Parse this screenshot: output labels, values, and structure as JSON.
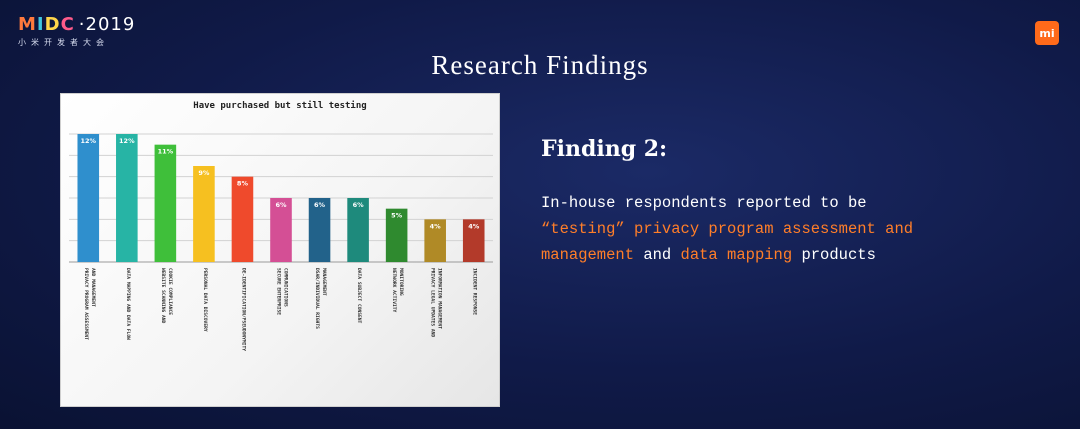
{
  "header": {
    "logo_segments": [
      "M",
      "I",
      "D",
      "C",
      "·2019"
    ],
    "logo_subtitle": "小米开发者大会",
    "brand_badge": "mi",
    "brand_color": "#ff6a1a"
  },
  "page_title": "Research Findings",
  "finding": {
    "title": "Finding 2:",
    "line1": "In-house respondents reported to be",
    "hl1": "“testing” privacy program assessment and",
    "hl2": "management",
    "mid": " and ",
    "hl3": "data mapping",
    "tail": " products",
    "highlight_color": "#ff7e29"
  },
  "chart_data": {
    "type": "bar",
    "title": "Have purchased but still testing",
    "categories": [
      "PRIVACY PROGRAM ASSESSMENT AND MANAGEMENT",
      "DATA MAPPING AND DATA FLOW",
      "WEBSITE SCANNING AND COOKIE COMPLIANCE",
      "PERSONAL DATA DISCOVERY",
      "DE-IDENTIFICATION/PSEUDONYMITY",
      "SECURE ENTERPRISE COMMUNICATIONS",
      "DSAR/INDIVIDUAL RIGHTS MANAGEMENT",
      "DATA SUBJECT CONSENT",
      "NETWORK ACTIVITY MONITORING",
      "PRIVACY LEGAL UPDATES AND INFORMATION MANAGEMENT",
      "INCIDENT RESPONSE"
    ],
    "values": [
      12,
      12,
      11,
      9,
      8,
      6,
      6,
      6,
      5,
      4,
      4
    ],
    "value_labels": [
      "12%",
      "12%",
      "11%",
      "9%",
      "8%",
      "6%",
      "6%",
      "6%",
      "5%",
      "4%",
      "4%"
    ],
    "colors": [
      "#2f8fcd",
      "#27b4a5",
      "#3fbf3a",
      "#f6c020",
      "#ef4a2c",
      "#d44f95",
      "#22628a",
      "#1e8a7c",
      "#2f8a2f",
      "#b08a26",
      "#b33a2a"
    ],
    "ylim": [
      0,
      12
    ],
    "grid": true
  }
}
